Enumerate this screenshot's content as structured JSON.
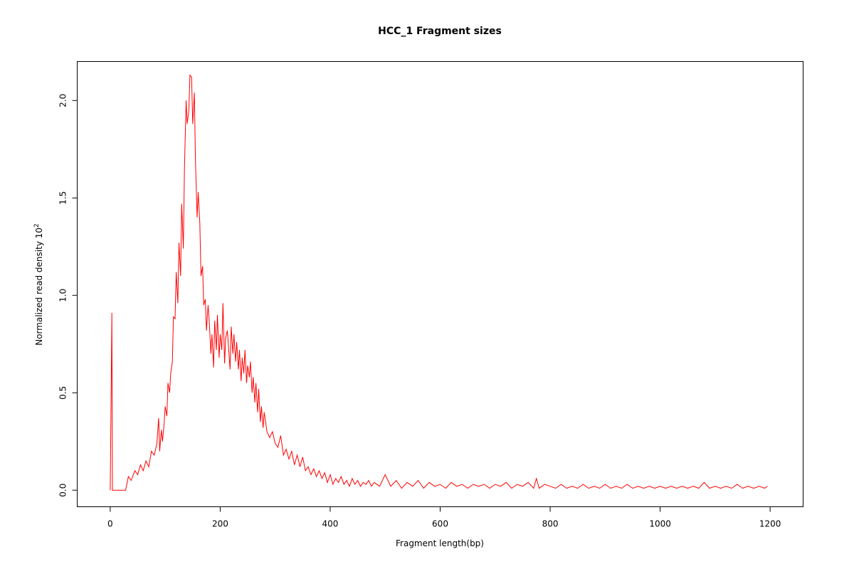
{
  "chart_data": {
    "type": "line",
    "title": "HCC_1 Fragment sizes",
    "xlabel": "Fragment length(bp)",
    "ylabel": "Normalized read density",
    "ylabel_power": "10",
    "ylabel_exponent": "2",
    "xlim": [
      -60,
      1260
    ],
    "ylim": [
      -0.085,
      2.2
    ],
    "x_ticks": [
      0,
      200,
      400,
      600,
      800,
      1000,
      1200
    ],
    "x_tick_labels": [
      "0",
      "200",
      "400",
      "600",
      "800",
      "1000",
      "1200"
    ],
    "y_ticks": [
      0.0,
      0.5,
      1.0,
      1.5,
      2.0
    ],
    "y_tick_labels": [
      "0.0",
      "0.5",
      "1.0",
      "1.5",
      "2.0"
    ],
    "grid": false,
    "series": [
      {
        "color": "#ff0000",
        "x": [
          0,
          3,
          4,
          28,
          33,
          38,
          45,
          50,
          55,
          60,
          65,
          70,
          75,
          80,
          85,
          88,
          90,
          93,
          95,
          98,
          100,
          103,
          105,
          108,
          110,
          113,
          115,
          118,
          120,
          123,
          125,
          128,
          130,
          133,
          135,
          138,
          140,
          143,
          145,
          148,
          150,
          153,
          155,
          158,
          160,
          163,
          165,
          168,
          170,
          173,
          175,
          178,
          180,
          183,
          185,
          188,
          190,
          193,
          195,
          198,
          200,
          203,
          205,
          208,
          210,
          213,
          215,
          218,
          220,
          223,
          225,
          228,
          230,
          233,
          235,
          238,
          240,
          243,
          245,
          248,
          250,
          253,
          255,
          258,
          260,
          263,
          265,
          268,
          270,
          273,
          275,
          278,
          280,
          285,
          290,
          295,
          300,
          305,
          310,
          315,
          320,
          325,
          330,
          335,
          340,
          345,
          350,
          355,
          360,
          365,
          370,
          375,
          380,
          385,
          390,
          395,
          400,
          405,
          410,
          415,
          420,
          425,
          430,
          435,
          440,
          445,
          450,
          455,
          460,
          465,
          470,
          475,
          480,
          490,
          500,
          510,
          520,
          530,
          540,
          550,
          560,
          570,
          580,
          590,
          600,
          610,
          620,
          630,
          640,
          650,
          660,
          670,
          680,
          690,
          700,
          710,
          720,
          730,
          740,
          750,
          760,
          770,
          775,
          780,
          790,
          800,
          810,
          820,
          830,
          840,
          850,
          860,
          870,
          880,
          890,
          900,
          910,
          920,
          930,
          940,
          950,
          960,
          970,
          980,
          990,
          1000,
          1010,
          1020,
          1030,
          1040,
          1050,
          1060,
          1070,
          1080,
          1090,
          1100,
          1110,
          1120,
          1130,
          1140,
          1150,
          1160,
          1170,
          1180,
          1190,
          1195
        ],
        "y": [
          0,
          0.91,
          0,
          0,
          0.07,
          0.05,
          0.1,
          0.08,
          0.13,
          0.1,
          0.15,
          0.12,
          0.2,
          0.18,
          0.24,
          0.37,
          0.2,
          0.31,
          0.25,
          0.34,
          0.43,
          0.38,
          0.55,
          0.5,
          0.6,
          0.66,
          0.89,
          0.88,
          1.12,
          0.96,
          1.27,
          1.1,
          1.47,
          1.24,
          1.65,
          2.0,
          1.88,
          1.95,
          2.13,
          2.12,
          1.88,
          2.04,
          1.7,
          1.4,
          1.53,
          1.37,
          1.1,
          1.15,
          0.95,
          0.98,
          0.82,
          0.95,
          0.87,
          0.7,
          0.8,
          0.63,
          0.87,
          0.72,
          0.9,
          0.68,
          0.8,
          0.72,
          0.96,
          0.65,
          0.78,
          0.82,
          0.74,
          0.62,
          0.84,
          0.7,
          0.8,
          0.66,
          0.76,
          0.62,
          0.72,
          0.56,
          0.68,
          0.6,
          0.72,
          0.55,
          0.64,
          0.58,
          0.66,
          0.5,
          0.58,
          0.45,
          0.55,
          0.4,
          0.52,
          0.35,
          0.43,
          0.32,
          0.4,
          0.3,
          0.27,
          0.3,
          0.24,
          0.22,
          0.28,
          0.18,
          0.21,
          0.16,
          0.2,
          0.13,
          0.18,
          0.12,
          0.17,
          0.1,
          0.12,
          0.08,
          0.11,
          0.07,
          0.1,
          0.06,
          0.09,
          0.04,
          0.08,
          0.03,
          0.06,
          0.04,
          0.07,
          0.03,
          0.05,
          0.02,
          0.06,
          0.03,
          0.05,
          0.02,
          0.04,
          0.03,
          0.05,
          0.02,
          0.04,
          0.02,
          0.08,
          0.02,
          0.05,
          0.01,
          0.04,
          0.02,
          0.05,
          0.01,
          0.04,
          0.02,
          0.03,
          0.01,
          0.04,
          0.02,
          0.03,
          0.01,
          0.03,
          0.02,
          0.03,
          0.01,
          0.03,
          0.02,
          0.04,
          0.01,
          0.03,
          0.02,
          0.04,
          0.01,
          0.06,
          0.01,
          0.03,
          0.02,
          0.01,
          0.03,
          0.01,
          0.02,
          0.01,
          0.03,
          0.01,
          0.02,
          0.01,
          0.03,
          0.01,
          0.02,
          0.01,
          0.03,
          0.01,
          0.02,
          0.01,
          0.02,
          0.01,
          0.02,
          0.01,
          0.02,
          0.01,
          0.02,
          0.01,
          0.02,
          0.01,
          0.04,
          0.01,
          0.02,
          0.01,
          0.02,
          0.01,
          0.03,
          0.01,
          0.02,
          0.01,
          0.02,
          0.01,
          0.02
        ]
      }
    ]
  }
}
